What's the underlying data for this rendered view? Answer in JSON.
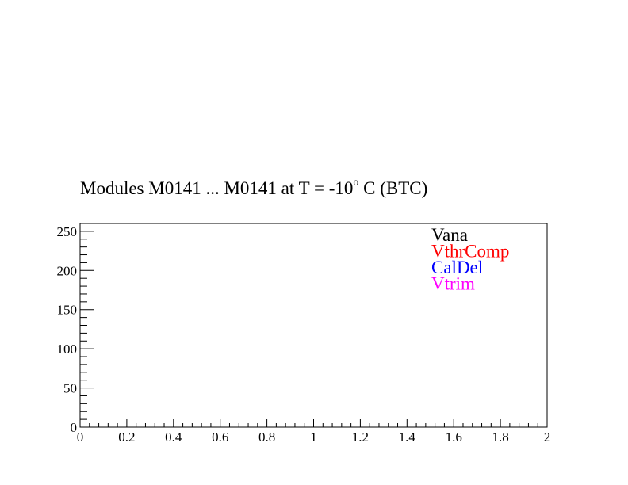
{
  "chart_data": {
    "type": "line",
    "title": {
      "prefix": "Modules M0141 ... M0141 at T =  -10",
      "superscript": "o",
      "suffix": " C (BTC)"
    },
    "xlim": [
      0,
      2
    ],
    "ylim": [
      0,
      260
    ],
    "x_ticks": [
      "0",
      "0.2",
      "0.4",
      "0.6",
      "0.8",
      "1",
      "1.2",
      "1.4",
      "1.6",
      "1.8",
      "2"
    ],
    "y_ticks": [
      "0",
      "50",
      "100",
      "150",
      "200",
      "250"
    ],
    "grid": false,
    "legend_placement": "top-right",
    "series": [
      {
        "name": "Vana",
        "color": "#000000",
        "values": []
      },
      {
        "name": "VthrComp",
        "color": "#ff0000",
        "values": []
      },
      {
        "name": "CalDel",
        "color": "#0000ff",
        "values": []
      },
      {
        "name": "Vtrim",
        "color": "#ff00ff",
        "values": []
      }
    ]
  }
}
